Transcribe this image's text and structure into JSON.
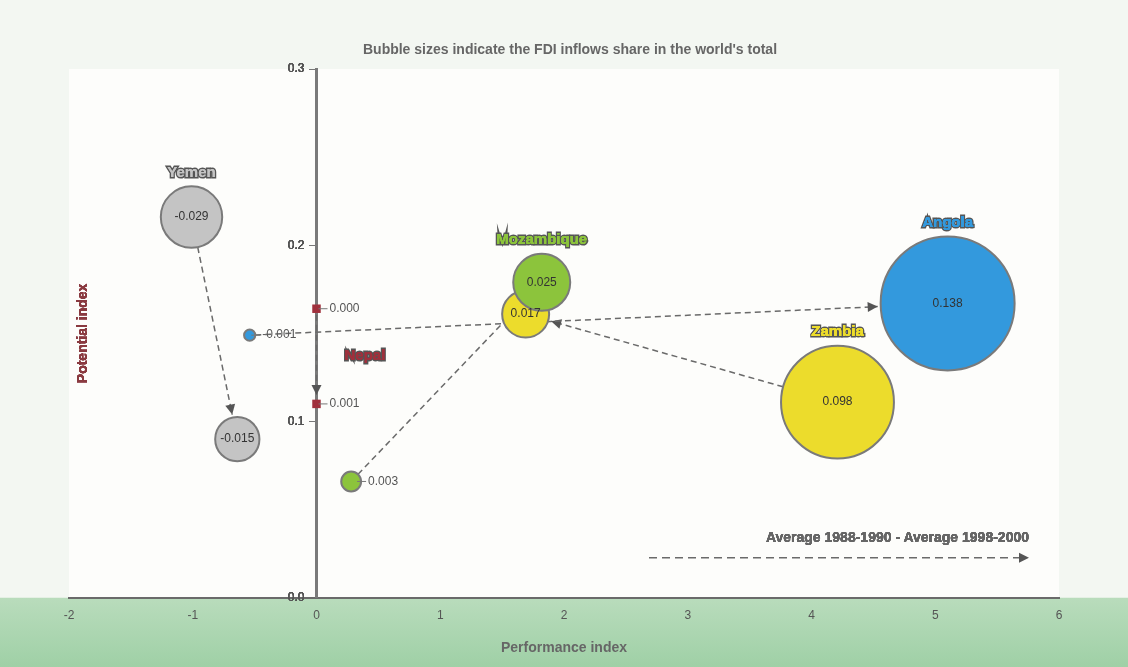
{
  "chart_data": {
    "type": "bubble",
    "title": "Bubble sizes indicate the FDI inflows share in the world's total",
    "xlabel": "Performance index",
    "ylabel": "Potential index",
    "legend_title": "Average 1988-1990 - Average 1998-2000",
    "xlim": [
      -2,
      6
    ],
    "xticks": [
      -2,
      -1,
      0,
      1,
      2,
      3,
      4,
      5,
      6
    ],
    "ylim": [
      0,
      0.3
    ],
    "yticks": [
      {
        "value": 0,
        "label": "0.0"
      },
      0.1,
      0.2,
      0.3
    ],
    "series": [
      {
        "name": "Yemen",
        "color": "#c4c4c4",
        "x": [
          -1.01,
          -0.64
        ],
        "values": [
          0.216,
          0.09
        ],
        "sizes": [
          0.21,
          0.109
        ],
        "line_style": "dashed"
      },
      {
        "name": "Nepal",
        "type": "scatter",
        "marker": "square",
        "color": "#a0303c",
        "x": [
          0,
          0
        ],
        "values": [
          0.164,
          0.11
        ],
        "line_style": "dashed"
      },
      {
        "name": "Mozambique",
        "color": "#8cc43c",
        "x": [
          0.28,
          1.82
        ],
        "values": [
          0.066,
          0.179
        ],
        "sizes": [
          0.022,
          0.181
        ],
        "line_style": "dashed"
      },
      {
        "name": "Zambia",
        "color": "#ecdc2c",
        "x": [
          4.21,
          1.69
        ],
        "values": [
          0.111,
          0.161
        ],
        "sizes": [
          0.71,
          0.123
        ],
        "line_style": "dashed"
      },
      {
        "name": "Angola",
        "color": "#3399dd",
        "x": [
          -0.54,
          5.1
        ],
        "values": [
          0.149,
          0.167
        ],
        "sizes": [
          0.007,
          1
        ],
        "line_style": "dashed"
      }
    ],
    "annotations": [
      {
        "text": "-0.029",
        "x": -1.01,
        "y": 0.216
      },
      {
        "text": "-0.015",
        "x": -0.64,
        "y": 0.09
      },
      {
        "text": "0.000",
        "x": 0,
        "y": 0.164
      },
      {
        "text": "0.001",
        "x": 0,
        "y": 0.11
      },
      {
        "text": "0.003",
        "x": 0.28,
        "y": 0.066
      },
      {
        "text": "0.025",
        "x": 1.82,
        "y": 0.179
      },
      {
        "text": "0.098",
        "x": 4.21,
        "y": 0.111
      },
      {
        "text": "0.017",
        "x": 1.69,
        "y": 0.161
      },
      {
        "text": "-0.001",
        "x": -0.54,
        "y": 0.149
      },
      {
        "text": "0.138",
        "x": 5.1,
        "y": 0.167
      }
    ]
  }
}
